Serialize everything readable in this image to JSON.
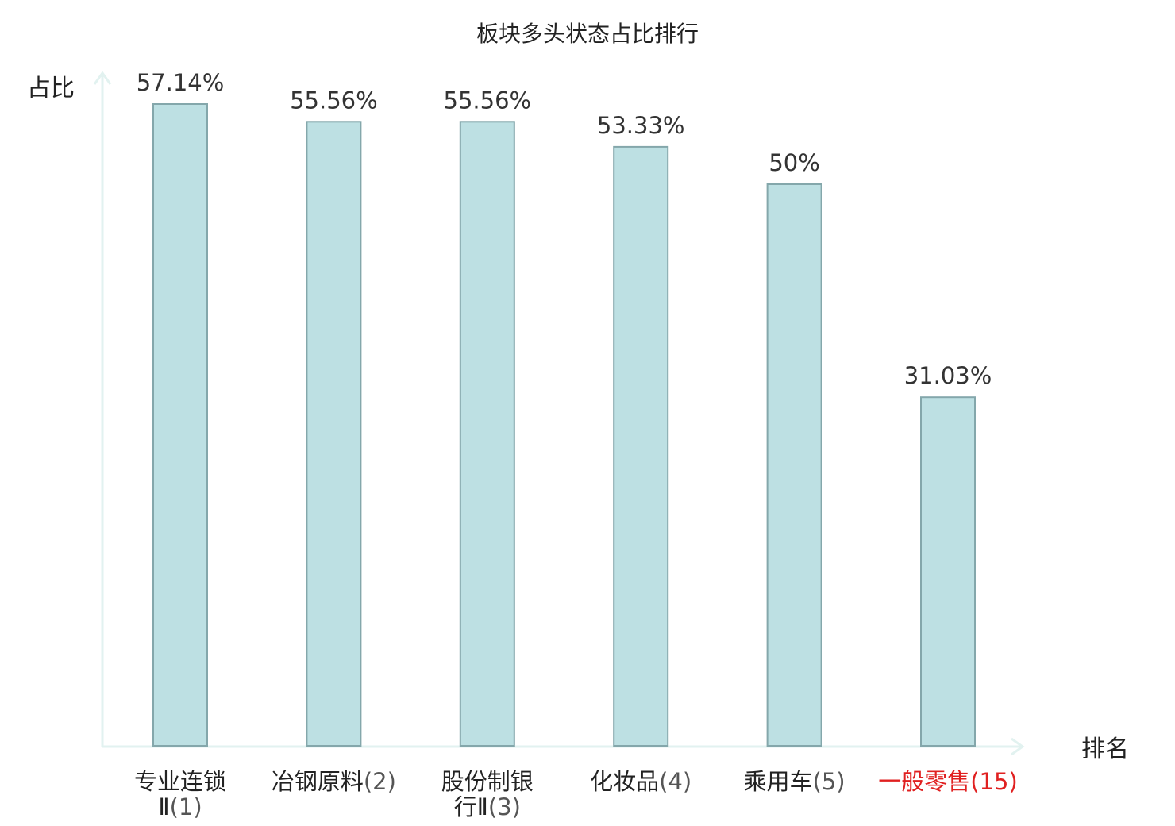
{
  "chart_data": {
    "type": "bar",
    "title": "板块多头状态占比排行",
    "ylabel": "占比",
    "xlabel": "排名",
    "ylim": [
      0,
      60
    ],
    "grid": false,
    "categories": [
      {
        "name_lines": [
          "专业连锁",
          "Ⅱ"
        ],
        "rank": "(1)",
        "highlight": false
      },
      {
        "name_lines": [
          "冶钢原料"
        ],
        "rank": "(2)",
        "highlight": false
      },
      {
        "name_lines": [
          "股份制银",
          "行Ⅱ"
        ],
        "rank": "(3)",
        "highlight": false
      },
      {
        "name_lines": [
          "化妆品"
        ],
        "rank": "(4)",
        "highlight": false
      },
      {
        "name_lines": [
          "乘用车"
        ],
        "rank": "(5)",
        "highlight": false
      },
      {
        "name_lines": [
          "一般零售"
        ],
        "rank": "(15)",
        "highlight": true
      }
    ],
    "values": [
      57.14,
      55.56,
      55.56,
      53.33,
      50,
      31.03
    ],
    "value_labels": [
      "57.14%",
      "55.56%",
      "55.56%",
      "53.33%",
      "50%",
      "31.03%"
    ]
  },
  "colors": {
    "bar_fill": "#bde0e3",
    "bar_stroke": "#84a7ab",
    "axis": "#e2f2f0",
    "highlight_text": "#e02020",
    "name_text": "#222222",
    "rank_text": "#555555"
  }
}
